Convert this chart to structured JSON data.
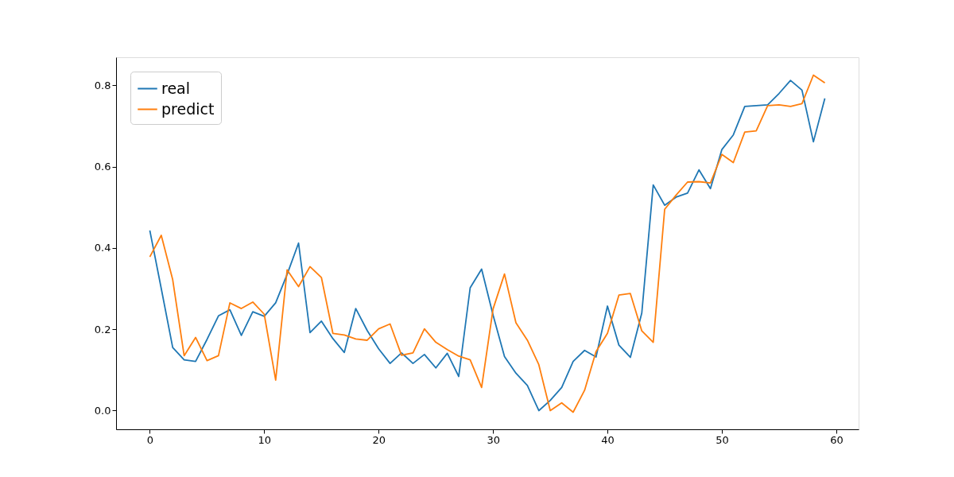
{
  "chart_data": {
    "type": "line",
    "x": [
      0,
      1,
      2,
      3,
      4,
      5,
      6,
      7,
      8,
      9,
      10,
      11,
      12,
      13,
      14,
      15,
      16,
      17,
      18,
      19,
      20,
      21,
      22,
      23,
      24,
      25,
      26,
      27,
      28,
      29,
      30,
      31,
      32,
      33,
      34,
      35,
      36,
      37,
      38,
      39,
      40,
      41,
      42,
      43,
      44,
      45,
      46,
      47,
      48,
      49,
      50,
      51,
      52,
      53,
      54,
      55,
      56,
      57,
      58,
      59
    ],
    "series": [
      {
        "name": "real",
        "color": "#1f77b4",
        "values": [
          0.443,
          0.3,
          0.155,
          0.125,
          0.121,
          0.175,
          0.233,
          0.248,
          0.185,
          0.243,
          0.232,
          0.265,
          0.335,
          0.412,
          0.192,
          0.22,
          0.177,
          0.143,
          0.251,
          0.197,
          0.152,
          0.116,
          0.142,
          0.116,
          0.138,
          0.105,
          0.141,
          0.084,
          0.302,
          0.348,
          0.235,
          0.133,
          0.092,
          0.062,
          0.0,
          0.025,
          0.057,
          0.121,
          0.148,
          0.132,
          0.257,
          0.161,
          0.131,
          0.24,
          0.555,
          0.505,
          0.525,
          0.535,
          0.592,
          0.546,
          0.642,
          0.678,
          0.748,
          0.75,
          0.752,
          0.78,
          0.812,
          0.788,
          0.661,
          0.768
        ]
      },
      {
        "name": "predict",
        "color": "#ff7f0e",
        "values": [
          0.378,
          0.431,
          0.322,
          0.135,
          0.18,
          0.123,
          0.135,
          0.265,
          0.251,
          0.267,
          0.237,
          0.075,
          0.346,
          0.305,
          0.354,
          0.327,
          0.19,
          0.186,
          0.176,
          0.173,
          0.201,
          0.213,
          0.136,
          0.142,
          0.201,
          0.168,
          0.15,
          0.134,
          0.125,
          0.057,
          0.25,
          0.336,
          0.216,
          0.173,
          0.113,
          0.0,
          0.019,
          -0.004,
          0.05,
          0.145,
          0.19,
          0.284,
          0.288,
          0.196,
          0.168,
          0.495,
          0.53,
          0.562,
          0.563,
          0.56,
          0.63,
          0.61,
          0.685,
          0.688,
          0.75,
          0.752,
          0.748,
          0.755,
          0.825,
          0.806
        ]
      }
    ],
    "xlim": [
      -2.95,
      61.95
    ],
    "xticks": [
      0,
      10,
      20,
      30,
      40,
      50,
      60
    ],
    "ylim": [
      -0.046,
      0.869
    ],
    "yticks": [
      {
        "value": 0,
        "label": "0.0"
      },
      {
        "value": 0.2,
        "label": "0.2"
      },
      {
        "value": 0.4,
        "label": "0.4"
      },
      {
        "value": 0.6,
        "label": "0.6"
      },
      {
        "value": 0.8,
        "label": "0.8"
      }
    ],
    "grid": false,
    "legend": "top left",
    "marker": "none",
    "line_style": "solid"
  }
}
